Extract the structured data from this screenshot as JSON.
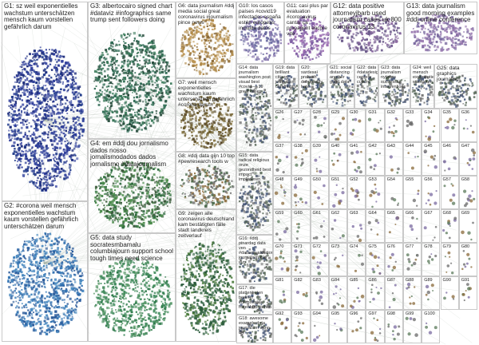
{
  "groups": [
    {
      "id": "G1",
      "label": "G1: sz weil exponentielles wachstum unterschätzen mensch kaum vorstellen gefährlich darum",
      "color": "#2a3a8a",
      "shape": "ellipse"
    },
    {
      "id": "G2",
      "label": "G2: #corona weil mensch exponentielles wachstum kaum vorstellen gefährlich unterschätzen darum",
      "color": "#3c74b4",
      "shape": "ellipse"
    },
    {
      "id": "G3",
      "label": "G3: albertocairo signed chart #dataviz #infographics same trump sent followers doing",
      "color": "#2f6a54",
      "shape": "ellipse"
    },
    {
      "id": "G4",
      "label": "G4: em #ddj dou jornalismo dados nosso jornalismodados dados jornalismo #datajournalism",
      "color": "#3b6e46",
      "shape": "ellipse"
    },
    {
      "id": "G5",
      "label": "G5: data study socratesmbamalu columbiajourn support school tough times need science",
      "color": "#3f8a5c",
      "shape": "ellipse"
    },
    {
      "id": "G6",
      "label": "G6: data journalism #ddj media social great coronavirus #journalism pince news",
      "color": "#a07a3a",
      "shape": "rect"
    },
    {
      "id": "G7",
      "label": "G7: weil mensch exponentielles wachstum kaum unterschätzen gefährlich #corona darum",
      "color": "#6a5a2a",
      "shape": "rect"
    },
    {
      "id": "G8",
      "label": "G8: #ddj data gijn 10 top #pewresearch tools w",
      "color": "#6a6a6a",
      "shape": "rect"
    },
    {
      "id": "G9",
      "label": "G9: zeigen alle coronavirus deutschland kam bestätigten fälle stadt landkreis zeitverlauf",
      "color": "#4a7a3a",
      "shape": "ellipse"
    },
    {
      "id": "G10",
      "label": "G10: los casos países #covid19 infectados españa estén europeas incluida datos",
      "color": "#6a6aa0",
      "shape": "rect"
    },
    {
      "id": "G11",
      "label": "G11: casi plus par evaluation #coronavirus cantar ça propagent encore vite",
      "color": "#7a5aa0",
      "shape": "rect"
    },
    {
      "id": "G12",
      "label": "G12: data positive attorneyjbarb used journalism cases uk 800 coronavirus 13",
      "color": "#8a6aa0",
      "shape": "rect"
    },
    {
      "id": "G13",
      "label": "G13: data journalism good morning examples #ddj online conference",
      "color": "#9a7ab0",
      "shape": "rect"
    },
    {
      "id": "G14",
      "label": "G14: data journalism washington post visual best #covid — 19 great cases",
      "color": "#7a8a5a",
      "shape": "rect"
    },
    {
      "id": "G15",
      "label": "G15: data radical religious onze gezondheid best impact imploderen",
      "color": "#7a7a7a",
      "shape": "rect"
    },
    {
      "id": "G16",
      "label": "G16: #ddj pinardag data ven #datavisualization journalism kilo #vg",
      "color": "#7a7a7a",
      "shape": "rect"
    },
    {
      "id": "G17",
      "label": "G17: die plattenhuten berliner #dieprivate frittenbud stehen",
      "color": "#7a7a7a",
      "shape": "rect"
    },
    {
      "id": "G18",
      "label": "G18: awesome example data journalism dann die",
      "color": "#7a7a7a",
      "shape": "rect"
    },
    {
      "id": "G19",
      "label": "G19: data brilliant citizen journalism community",
      "color": "#7a7a7a",
      "shape": "rect"
    },
    {
      "id": "G20",
      "label": "G20: sardesai prakash dehupaddy hate",
      "color": "#7a7a7a",
      "shape": "rect"
    },
    {
      "id": "G21",
      "label": "G21: social distancing another good data",
      "color": "#7a7a7a",
      "shape": "rect"
    },
    {
      "id": "G22",
      "label": "G22: data #datadesign centers culture",
      "color": "#7a7a7a",
      "shape": "rect"
    },
    {
      "id": "G23",
      "label": "G23: data journalism nytimes successful interventions",
      "color": "#7a7a7a",
      "shape": "rect"
    },
    {
      "id": "G24",
      "label": "G24: weil mensch exponentielles wachstum",
      "color": "#7a7a7a",
      "shape": "rect"
    },
    {
      "id": "G25",
      "label": "G25: data graphics journalism",
      "color": "#7a7a7a",
      "shape": "rect"
    }
  ],
  "small_groups": [
    "G26",
    "G27",
    "G28",
    "G29",
    "G30",
    "G31",
    "G32",
    "G33",
    "G34",
    "G35",
    "G36",
    "G37",
    "G38",
    "G39",
    "G40",
    "G41",
    "G42",
    "G43",
    "G44",
    "G45",
    "G46",
    "G47",
    "G48",
    "G49",
    "G50",
    "G51",
    "G52",
    "G53",
    "G54",
    "G55",
    "G56",
    "G57",
    "G58",
    "G59",
    "G60",
    "G61",
    "G62",
    "G63",
    "G64",
    "G65",
    "G66",
    "G67",
    "G68",
    "G69",
    "G70",
    "G71",
    "G72",
    "G73",
    "G74",
    "G75",
    "G76",
    "G77",
    "G78",
    "G79",
    "G80",
    "G81",
    "G82",
    "G83",
    "G84",
    "G85",
    "G86",
    "G87",
    "G88",
    "G89",
    "G90",
    "G91",
    "G92",
    "G93",
    "G94",
    "G95",
    "G96",
    "G97",
    "G98",
    "G99",
    "G100"
  ],
  "colors": {
    "edge": "#8a9a8a",
    "node_dark": "#1e2a6e",
    "node_green": "#2f7a4a",
    "node_brown": "#8a6a3a",
    "node_purple": "#7a5aa0"
  }
}
